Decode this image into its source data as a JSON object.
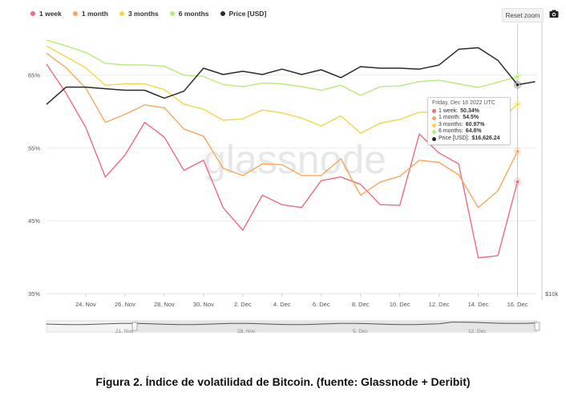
{
  "legend": [
    {
      "label": "1 week",
      "color": "#ef6b7d"
    },
    {
      "label": "1 month",
      "color": "#f5a85a"
    },
    {
      "label": "3 months",
      "color": "#f3d64a"
    },
    {
      "label": "6 months",
      "color": "#b6eb7a"
    },
    {
      "label": "Price [USD]",
      "color": "#2a2a2a"
    }
  ],
  "toolbar": {
    "reset_zoom_label": "Reset zoom",
    "camera_icon": "camera-icon"
  },
  "watermark": "glassnode",
  "tooltip": {
    "date": "Friday, Dec 16 2022 UTC",
    "rows": [
      {
        "label": "1 week:",
        "value": "50.34%",
        "color": "#ef6b7d"
      },
      {
        "label": "1 month:",
        "value": "54.5%",
        "color": "#f5a85a"
      },
      {
        "label": "3 months:",
        "value": "60.97%",
        "color": "#f3d64a"
      },
      {
        "label": "6 months:",
        "value": "64.8%",
        "color": "#b6eb7a"
      },
      {
        "label": "Price [USD]:",
        "value": "$16,626.24",
        "color": "#2a2a2a"
      }
    ]
  },
  "navigator": {
    "labels": [
      "21. Nov",
      "28. Nov",
      "5. Dec",
      "12. Dec"
    ]
  },
  "caption": "Figura 2. Índice de volatilidad de Bitcoin. (fuente: Glassnode + Deribit)",
  "chart_data": {
    "type": "line",
    "title": "",
    "xlabel": "",
    "ylabel": "",
    "x_dates": [
      "Nov 22",
      "Nov 23",
      "Nov 24",
      "Nov 25",
      "Nov 26",
      "Nov 27",
      "Nov 28",
      "Nov 29",
      "Nov 30",
      "Dec 1",
      "Dec 2",
      "Dec 3",
      "Dec 4",
      "Dec 5",
      "Dec 6",
      "Dec 7",
      "Dec 8",
      "Dec 9",
      "Dec 10",
      "Dec 11",
      "Dec 12",
      "Dec 13",
      "Dec 14",
      "Dec 15",
      "Dec 16"
    ],
    "x_tick_labels": [
      "24. Nov",
      "26. Nov",
      "28. Nov",
      "30. Nov",
      "2. Dec",
      "4. Dec",
      "6. Dec",
      "8. Dec",
      "10. Dec",
      "12. Dec",
      "14. Dec",
      "16. Dec"
    ],
    "y_tick_labels": [
      "35%",
      "45%",
      "55%",
      "65%"
    ],
    "y_right_tick_labels": [
      "$10k"
    ],
    "ylim": [
      35,
      72
    ],
    "grid": "horizontal",
    "legend_position": "top-left",
    "series": [
      {
        "name": "1 week",
        "axis": "left",
        "color": "#ef6b7d",
        "values": [
          66.5,
          62.5,
          57.8,
          51.0,
          54.0,
          58.5,
          56.5,
          51.9,
          53.3,
          46.8,
          43.7,
          48.5,
          47.2,
          46.8,
          50.5,
          51.0,
          50.0,
          47.2,
          47.1,
          56.9,
          54.3,
          52.8,
          39.9,
          40.2,
          50.34
        ]
      },
      {
        "name": "1 month",
        "axis": "left",
        "color": "#f5a85a",
        "values": [
          68.0,
          66.0,
          63.2,
          58.5,
          59.6,
          60.9,
          60.5,
          57.6,
          56.6,
          52.2,
          51.2,
          52.8,
          52.7,
          51.2,
          51.2,
          53.5,
          48.5,
          50.3,
          51.1,
          53.3,
          53.0,
          51.3,
          46.8,
          49.1,
          54.5
        ]
      },
      {
        "name": "3 months",
        "axis": "left",
        "color": "#f3d64a",
        "values": [
          69.0,
          67.5,
          66.0,
          63.6,
          63.8,
          63.8,
          63.0,
          61.0,
          60.3,
          58.8,
          59.0,
          60.2,
          59.8,
          59.1,
          58.0,
          59.4,
          57.0,
          58.4,
          58.9,
          59.9,
          59.9,
          59.1,
          56.3,
          58.6,
          60.97
        ]
      },
      {
        "name": "6 months",
        "axis": "left",
        "color": "#b6eb7a",
        "values": [
          69.8,
          69.0,
          68.1,
          66.6,
          66.4,
          66.4,
          66.2,
          65.0,
          64.8,
          63.7,
          63.4,
          63.9,
          63.8,
          63.4,
          62.9,
          63.6,
          62.2,
          63.4,
          63.5,
          64.1,
          64.3,
          63.8,
          63.3,
          64.0,
          64.8
        ]
      },
      {
        "name": "Price [USD]",
        "axis": "right",
        "color": "#2a2a2a",
        "values": [
          16.0,
          16.55,
          16.55,
          16.5,
          16.45,
          16.45,
          16.2,
          16.42,
          17.15,
          16.95,
          17.05,
          16.95,
          17.12,
          16.95,
          17.1,
          16.85,
          17.2,
          17.15,
          17.15,
          17.12,
          17.25,
          17.75,
          17.8,
          17.4,
          16.62624
        ]
      }
    ]
  }
}
